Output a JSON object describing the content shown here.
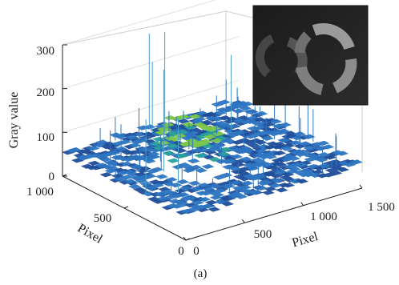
{
  "chart_data": {
    "type": "surface",
    "zlabel": "Gray value",
    "xlabel": "Pixel",
    "ylabel": "Pixel",
    "caption": "(a)",
    "z_ticks": [
      "0",
      "100",
      "200",
      "300"
    ],
    "x_ticks": [
      "0",
      "500",
      "1 000",
      "1 500"
    ],
    "y_ticks": [
      "0",
      "500",
      "1 000"
    ],
    "zlim": [
      0,
      300
    ],
    "xlim": [
      0,
      1500
    ],
    "ylim": [
      0,
      1000
    ],
    "grid": true,
    "colormap": [
      "#1f4e9a",
      "#2e76c2",
      "#2aa39a",
      "#7cc84a"
    ],
    "surface": {
      "background_level": 55,
      "noise_amplitude": 20,
      "ring_peak_level": 150,
      "spikes_max": 290,
      "inset": "top-right"
    }
  }
}
